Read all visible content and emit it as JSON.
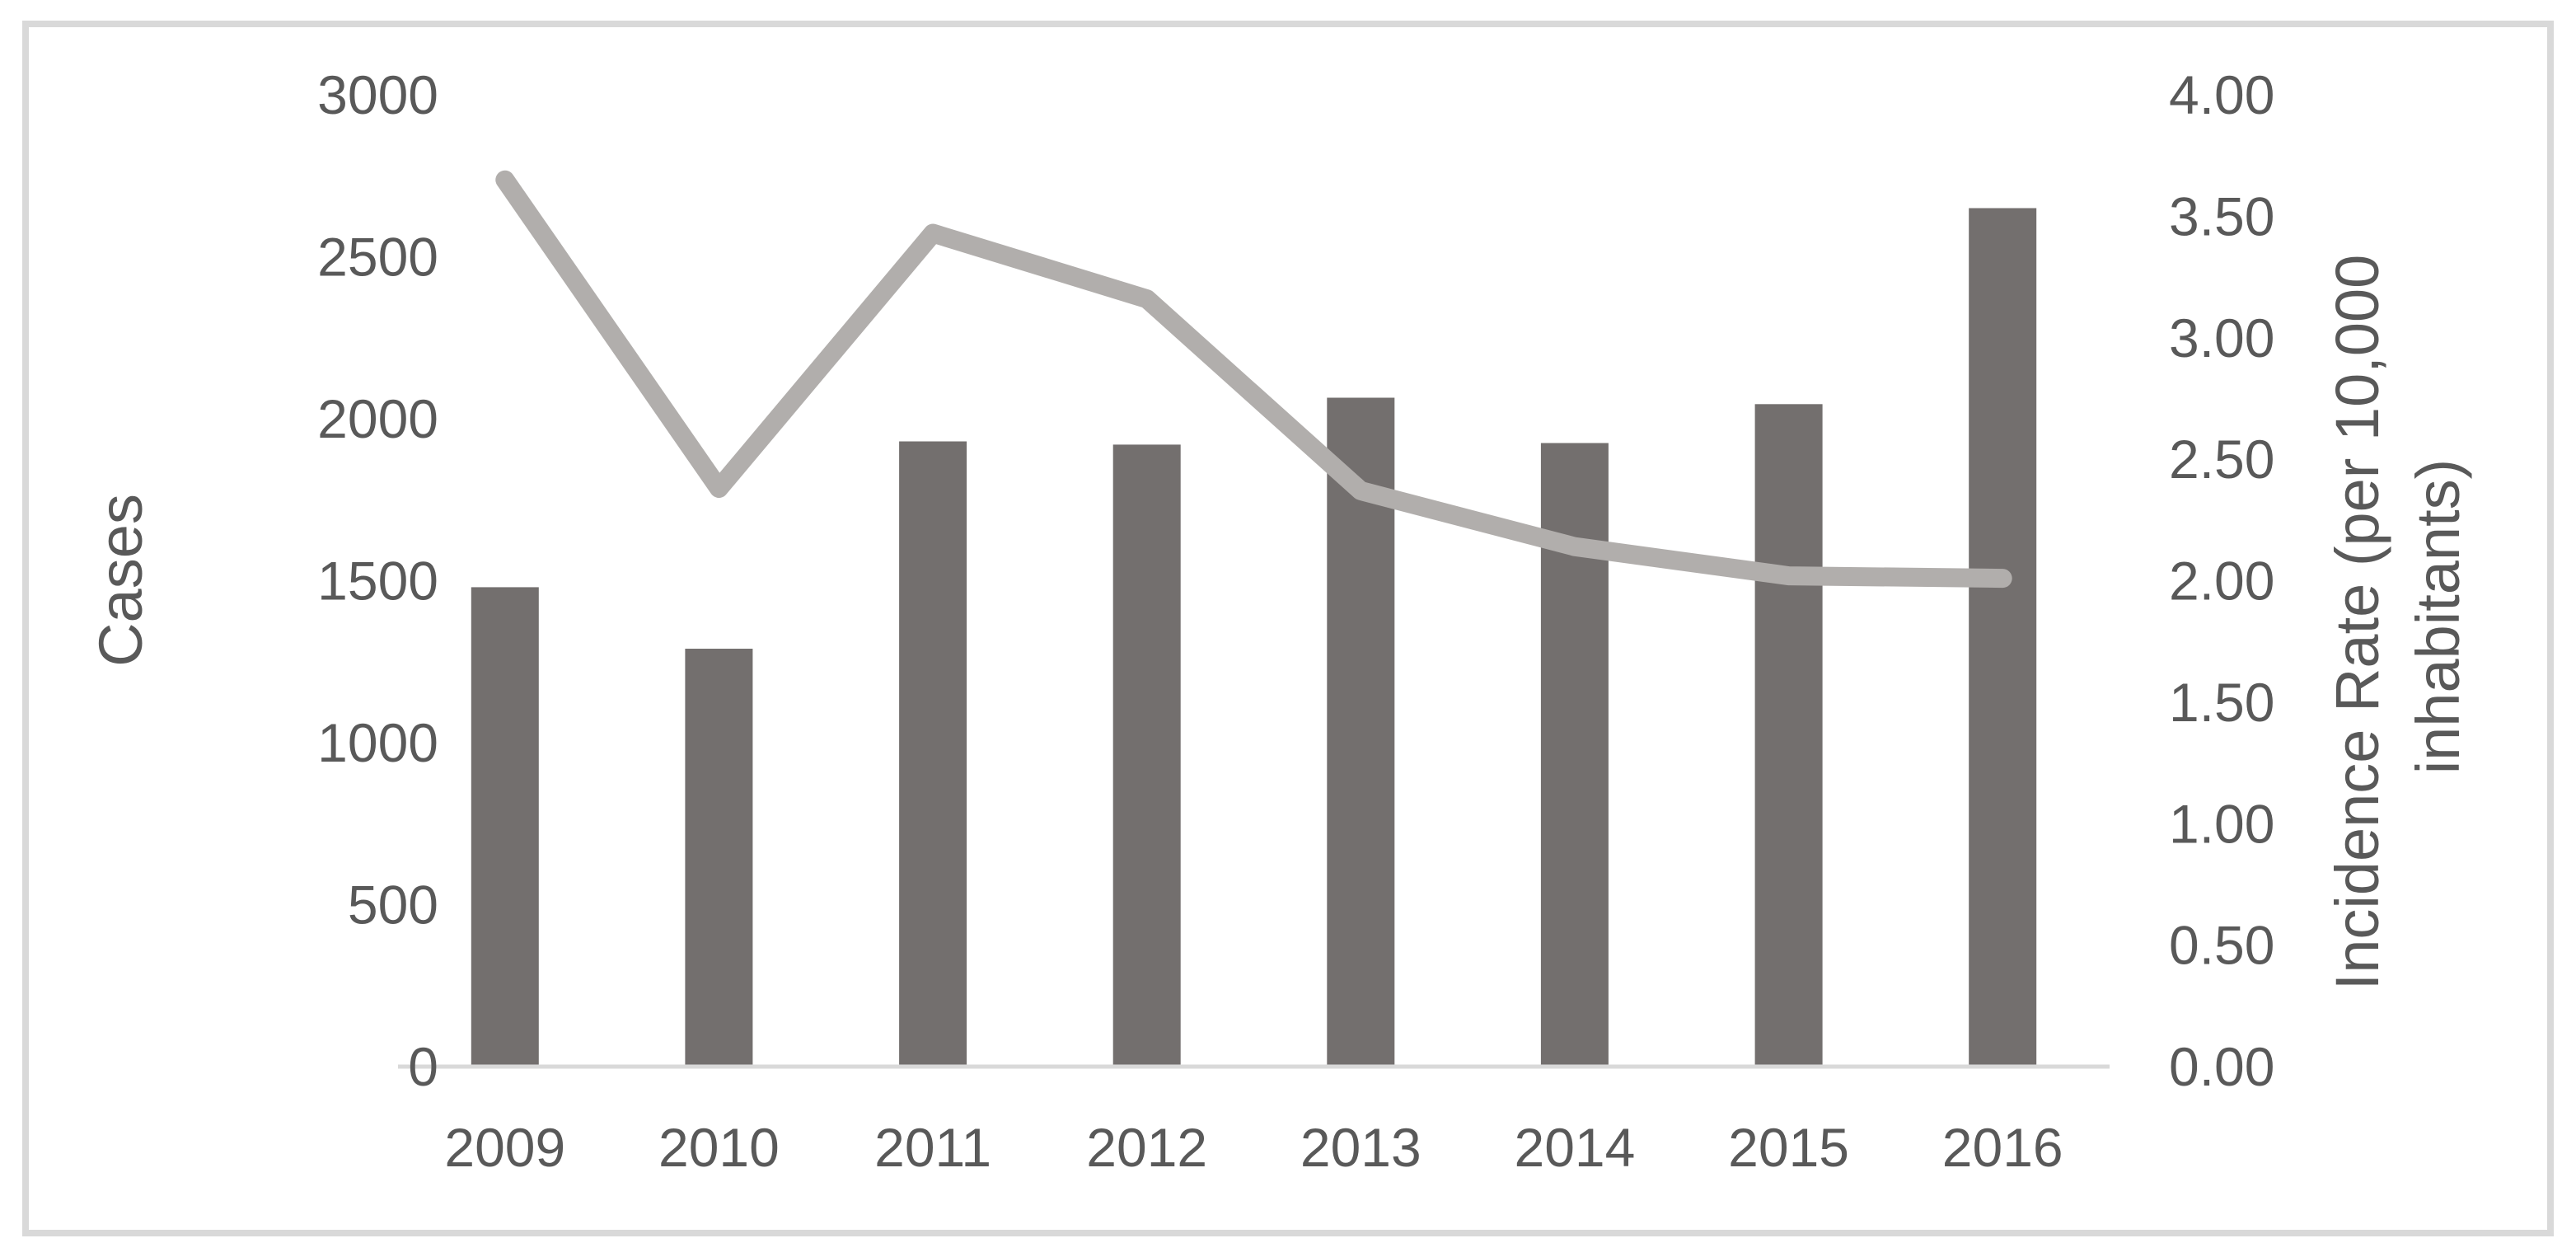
{
  "colors": {
    "bar": "#736F6E",
    "line": "#B1AEAC",
    "axis_line": "#D9D9D9",
    "frame_border": "#D9D9D9",
    "text": "#595959",
    "background": "#FFFFFF"
  },
  "chart_data": {
    "type": "bar+line combo",
    "title": "",
    "categories": [
      "2009",
      "2010",
      "2011",
      "2012",
      "2013",
      "2014",
      "2015",
      "2016"
    ],
    "series": [
      {
        "name": "Cases",
        "type": "bar",
        "axis": "left",
        "values": [
          1480,
          1290,
          1930,
          1920,
          2065,
          1925,
          2045,
          2650
        ]
      },
      {
        "name": "Incidence Rate (per 10,000 inhabitants)",
        "type": "line",
        "axis": "right",
        "values": [
          3.65,
          2.38,
          3.43,
          3.16,
          2.37,
          2.14,
          2.02,
          2.01
        ]
      }
    ],
    "left_axis": {
      "title": "Cases",
      "min": 0,
      "max": 3000,
      "step": 500,
      "tick_labels": [
        "3000",
        "2500",
        "2000",
        "1500",
        "1000",
        "500",
        "0"
      ]
    },
    "right_axis": {
      "title_line1": "Incidence Rate (per 10,000",
      "title_line2": "inhabitants)",
      "min": 0,
      "max": 4,
      "step": 0.5,
      "tick_labels": [
        "4.00",
        "3.50",
        "3.00",
        "2.50",
        "2.00",
        "1.50",
        "1.00",
        "0.50",
        "0.00"
      ]
    },
    "grid": false,
    "legend": false
  }
}
